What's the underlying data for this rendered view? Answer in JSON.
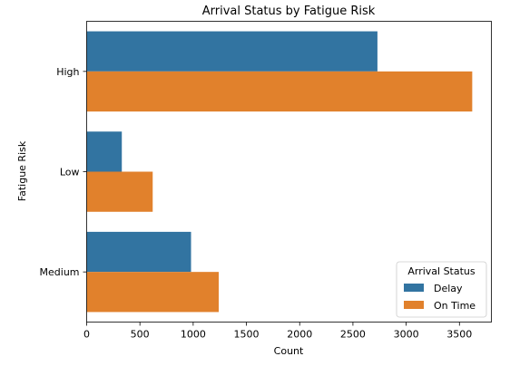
{
  "chart_data": {
    "type": "bar",
    "orientation": "horizontal",
    "title": "Arrival Status by Fatigue Risk",
    "xlabel": "Count",
    "ylabel": "Fatigue Risk",
    "categories": [
      "High",
      "Low",
      "Medium"
    ],
    "series": [
      {
        "name": "Delay",
        "color": "#3274a1",
        "values": [
          2730,
          330,
          980
        ]
      },
      {
        "name": "On Time",
        "color": "#e1812c",
        "values": [
          3620,
          620,
          1240
        ]
      }
    ],
    "xlim": [
      0,
      3800
    ],
    "xticks": [
      0,
      500,
      1000,
      1500,
      2000,
      2500,
      3000,
      3500
    ],
    "grid": false,
    "legend": {
      "title": "Arrival Status",
      "placement": "lower-right"
    }
  }
}
